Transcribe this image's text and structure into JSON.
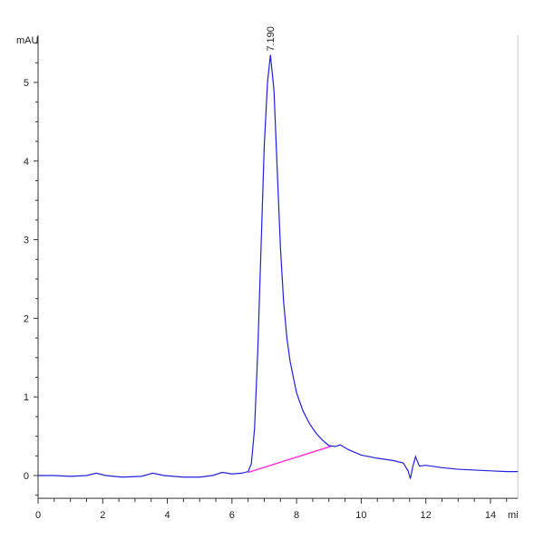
{
  "chart_data": {
    "type": "line",
    "ylabel": "mAU",
    "xlabel": "mi",
    "xlim": [
      0,
      14.85
    ],
    "ylim": [
      -0.29,
      5.6
    ],
    "xticks": [
      0,
      2,
      4,
      6,
      8,
      10,
      12,
      14
    ],
    "yticks": [
      0,
      1,
      2,
      3,
      4,
      5
    ],
    "grid": false,
    "peak_label": {
      "text": "7.190",
      "x": 7.19,
      "y": 5.35
    },
    "series": [
      {
        "color": "#2020e0",
        "x": [
          0,
          0.5,
          1.0,
          1.5,
          1.8,
          2.1,
          2.6,
          3.2,
          3.55,
          3.9,
          4.5,
          5.0,
          5.4,
          5.7,
          6.0,
          6.3,
          6.5,
          6.6,
          6.7,
          6.8,
          6.9,
          7.0,
          7.1,
          7.19,
          7.3,
          7.4,
          7.5,
          7.6,
          7.7,
          7.8,
          8.0,
          8.2,
          8.4,
          8.6,
          8.8,
          9.0,
          9.2,
          9.35,
          9.6,
          10.0,
          10.5,
          11.0,
          11.3,
          11.45,
          11.52,
          11.6,
          11.68,
          11.8,
          12.0,
          12.5,
          13.0,
          13.5,
          14.0,
          14.5,
          14.85
        ],
        "y": [
          0.0,
          0.0,
          -0.01,
          0.0,
          0.03,
          0.0,
          -0.02,
          -0.01,
          0.03,
          0.0,
          -0.02,
          -0.02,
          0.0,
          0.04,
          0.02,
          0.03,
          0.05,
          0.15,
          0.6,
          1.6,
          2.9,
          4.2,
          5.0,
          5.35,
          4.9,
          3.9,
          2.9,
          2.2,
          1.75,
          1.45,
          1.05,
          0.82,
          0.66,
          0.54,
          0.45,
          0.38,
          0.37,
          0.39,
          0.33,
          0.26,
          0.22,
          0.19,
          0.16,
          0.06,
          -0.04,
          0.12,
          0.24,
          0.12,
          0.13,
          0.1,
          0.08,
          0.07,
          0.06,
          0.05,
          0.05
        ]
      }
    ],
    "baseline": {
      "color": "#ff33dd",
      "x": [
        6.5,
        9.05
      ],
      "y": [
        0.04,
        0.37
      ]
    }
  }
}
